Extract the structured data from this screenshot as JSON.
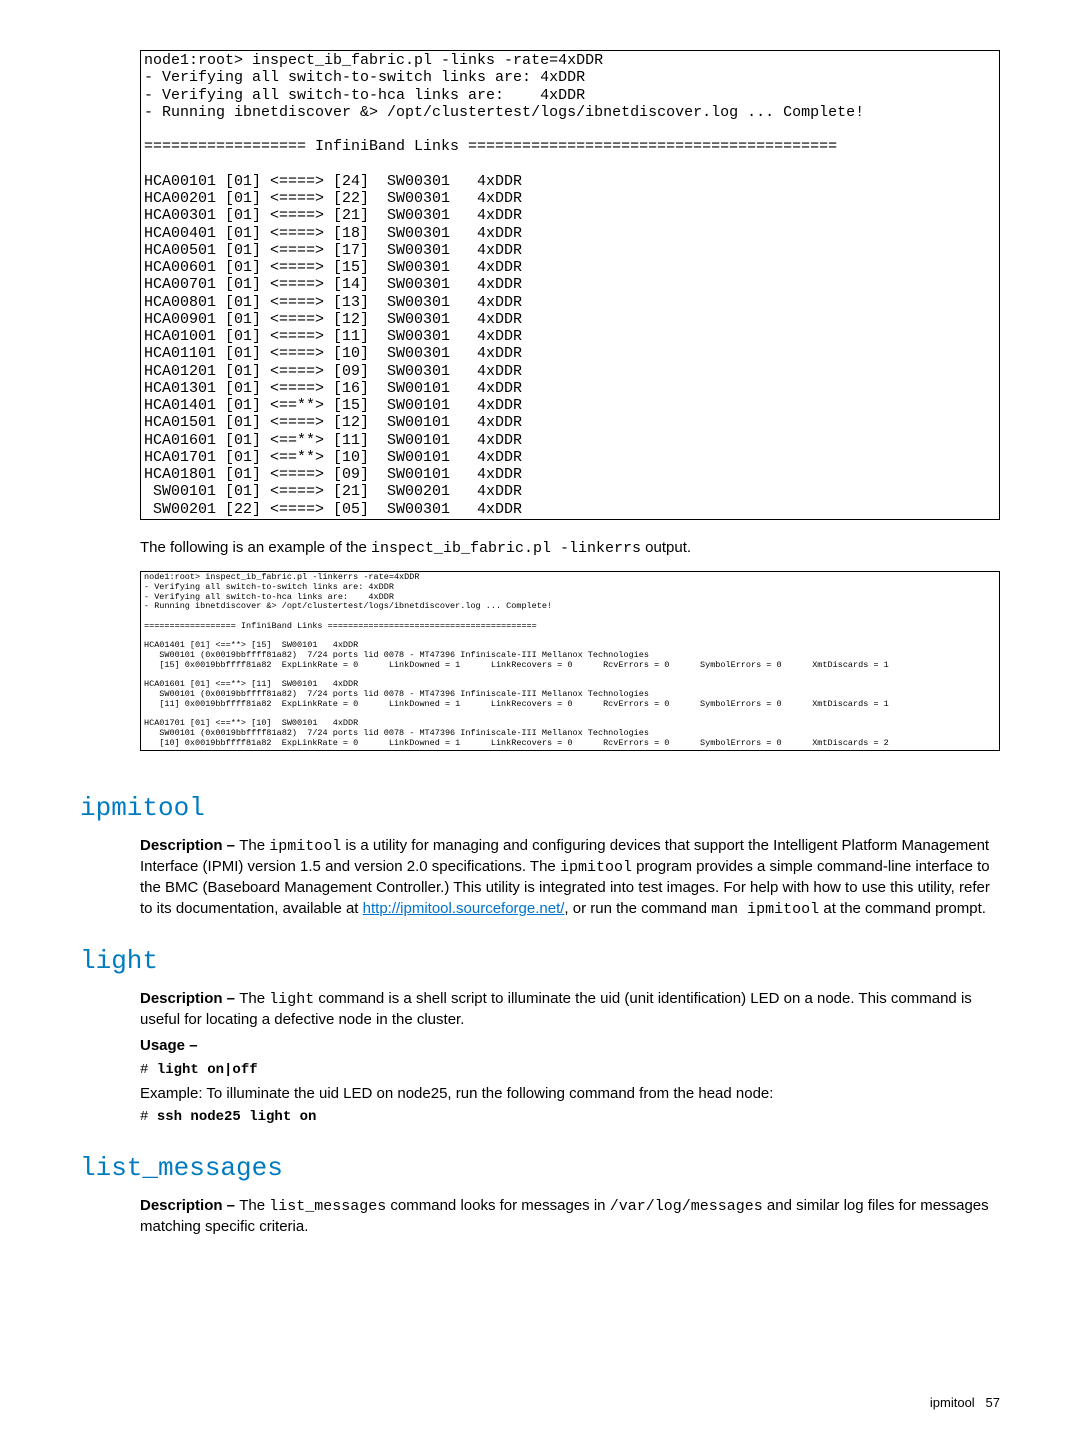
{
  "terminal1": {
    "lines": [
      "node1:root> inspect_ib_fabric.pl -links -rate=4xDDR",
      "- Verifying all switch-to-switch links are: 4xDDR",
      "- Verifying all switch-to-hca links are:    4xDDR",
      "- Running ibnetdiscover &> /opt/clustertest/logs/ibnetdiscover.log ... Complete!",
      "",
      "================== InfiniBand Links =========================================",
      "",
      "HCA00101 [01] <====> [24]  SW00301   4xDDR",
      "HCA00201 [01] <====> [22]  SW00301   4xDDR",
      "HCA00301 [01] <====> [21]  SW00301   4xDDR",
      "HCA00401 [01] <====> [18]  SW00301   4xDDR",
      "HCA00501 [01] <====> [17]  SW00301   4xDDR",
      "HCA00601 [01] <====> [15]  SW00301   4xDDR",
      "HCA00701 [01] <====> [14]  SW00301   4xDDR",
      "HCA00801 [01] <====> [13]  SW00301   4xDDR",
      "HCA00901 [01] <====> [12]  SW00301   4xDDR",
      "HCA01001 [01] <====> [11]  SW00301   4xDDR",
      "HCA01101 [01] <====> [10]  SW00301   4xDDR",
      "HCA01201 [01] <====> [09]  SW00301   4xDDR",
      "HCA01301 [01] <====> [16]  SW00101   4xDDR",
      "HCA01401 [01] <==**> [15]  SW00101   4xDDR",
      "HCA01501 [01] <====> [12]  SW00101   4xDDR",
      "HCA01601 [01] <==**> [11]  SW00101   4xDDR",
      "HCA01701 [01] <==**> [10]  SW00101   4xDDR",
      "HCA01801 [01] <====> [09]  SW00101   4xDDR",
      " SW00101 [01] <====> [21]  SW00201   4xDDR",
      " SW00201 [22] <====> [05]  SW00301   4xDDR"
    ]
  },
  "caption": {
    "prefix": "The following is an example of the ",
    "cmd": "inspect_ib_fabric.pl -linkerrs",
    "suffix": " output."
  },
  "terminal2": {
    "lines": [
      "node1:root> inspect_ib_fabric.pl -linkerrs -rate=4xDDR",
      "- Verifying all switch-to-switch links are: 4xDDR",
      "- Verifying all switch-to-hca links are:    4xDDR",
      "- Running ibnetdiscover &> /opt/clustertest/logs/ibnetdiscover.log ... Complete!",
      "",
      "================== InfiniBand Links =========================================",
      "",
      "HCA01401 [01] <==**> [15]  SW00101   4xDDR",
      "   SW00101 (0x0019bbffff81a82)  7/24 ports lid 0078 - MT47396 Infiniscale-III Mellanox Technologies",
      "   [15] 0x0019bbffff81a82  ExpLinkRate = 0      LinkDowned = 1      LinkRecovers = 0      RcvErrors = 0      SymbolErrors = 0      XmtDiscards = 1",
      "",
      "HCA01601 [01] <==**> [11]  SW00101   4xDDR",
      "   SW00101 (0x0019bbffff81a82)  7/24 ports lid 0078 - MT47396 Infiniscale-III Mellanox Technologies",
      "   [11] 0x0019bbffff81a82  ExpLinkRate = 0      LinkDowned = 1      LinkRecovers = 0      RcvErrors = 0      SymbolErrors = 0      XmtDiscards = 1",
      "",
      "HCA01701 [01] <==**> [10]  SW00101   4xDDR",
      "   SW00101 (0x0019bbffff81a82)  7/24 ports lid 0078 - MT47396 Infiniscale-III Mellanox Technologies",
      "   [10] 0x0019bbffff81a82  ExpLinkRate = 0      LinkDowned = 1      LinkRecovers = 0      RcvErrors = 0      SymbolErrors = 0      XmtDiscards = 2"
    ]
  },
  "sections": {
    "ipmitool": {
      "title": "ipmitool",
      "desc_label": "Description – ",
      "desc_1a": "The ",
      "desc_1b": "ipmitool",
      "desc_1c": " is a utility for managing and configuring devices that support the Intelligent Platform Management Interface (IPMI) version 1.5 and version 2.0 specifications. The ",
      "desc_2a": "ipmitool",
      "desc_2b": " program provides a simple command-line interface to the BMC (Baseboard Management Controller.) This utility is integrated into test images. For help with how to use this utility, refer to its documentation, available at ",
      "link": "http://ipmitool.sourceforge.net/",
      "desc_3a": ", or run the command ",
      "desc_3b": "man ipmitool",
      "desc_3c": " at the command prompt."
    },
    "light": {
      "title": "light",
      "desc_label": "Description – ",
      "desc_1a": "The ",
      "desc_1b": "light",
      "desc_1c": " command is a shell script to illuminate the uid (unit identification) LED on a node. This command is useful for locating a defective node in the cluster.",
      "usage_label": "Usage –",
      "cmd1_prompt": "# ",
      "cmd1": "light on|off",
      "example": "Example: To illuminate the uid LED on node25, run the following command from the head node:",
      "cmd2_prompt": "# ",
      "cmd2": "ssh node25 light on"
    },
    "list_messages": {
      "title": "list_messages",
      "desc_label": "Description – ",
      "desc_1a": "The ",
      "desc_1b": "list_messages",
      "desc_1c": " command looks for messages in ",
      "desc_1d": "/var/log/messages",
      "desc_1e": " and similar log files for messages matching specific criteria."
    }
  },
  "footer": {
    "label": "ipmitool",
    "page": "57"
  },
  "colors": {
    "heading": "#007bc1",
    "link": "#0073cf",
    "text": "#000000",
    "background": "#ffffff"
  }
}
